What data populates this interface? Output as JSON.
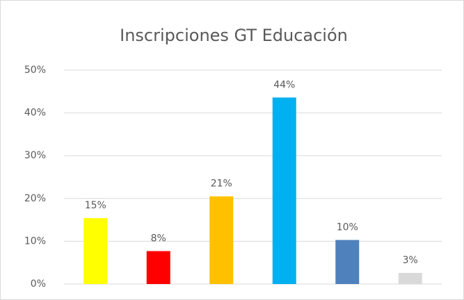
{
  "chart_data": {
    "type": "bar",
    "title": "Inscripciones GT Educación",
    "categories": [
      null,
      null,
      null,
      null,
      null,
      null
    ],
    "values": [
      15.4,
      7.7,
      20.5,
      43.6,
      10.3,
      2.6
    ],
    "value_labels": [
      "15%",
      "8%",
      "21%",
      "44%",
      "10%",
      "3%"
    ],
    "colors": [
      "#ffff00",
      "#ff0000",
      "#ffc000",
      "#00b0f0",
      "#4f81bd",
      "#d9d9d9"
    ],
    "ylim": [
      0,
      50
    ],
    "yticks": [
      {
        "value": 0,
        "label": "0%"
      },
      {
        "value": 10,
        "label": "10%"
      },
      {
        "value": 20,
        "label": "20%"
      },
      {
        "value": 30,
        "label": "30%"
      },
      {
        "value": 40,
        "label": "40%"
      },
      {
        "value": 50,
        "label": "50%"
      }
    ],
    "grid": true
  }
}
